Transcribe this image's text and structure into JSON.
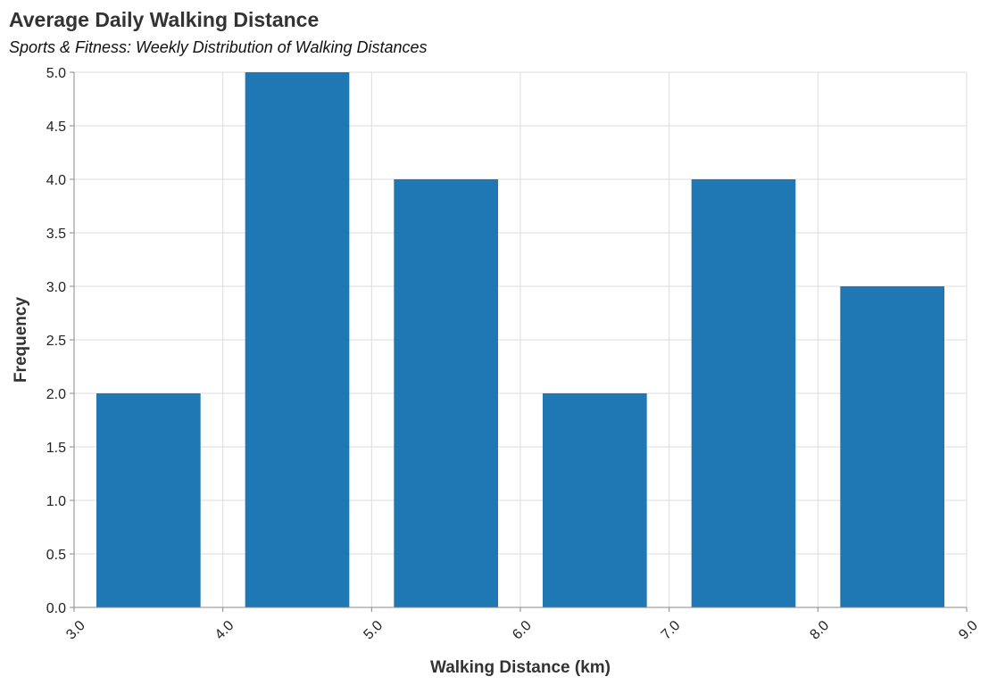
{
  "chart_data": {
    "type": "bar",
    "title": "Average Daily Walking Distance",
    "subtitle": "Sports & Fitness: Weekly Distribution of Walking Distances",
    "xlabel": "Walking Distance (km)",
    "ylabel": "Frequency",
    "xlim": [
      3.0,
      9.0
    ],
    "ylim": [
      0,
      5
    ],
    "x_ticks": [
      "3.0",
      "4.0",
      "5.0",
      "6.0",
      "7.0",
      "8.0",
      "9.0"
    ],
    "y_ticks": [
      "0.0",
      "0.5",
      "1.0",
      "1.5",
      "2.0",
      "2.5",
      "3.0",
      "3.5",
      "4.0",
      "4.5",
      "5.0"
    ],
    "bins": [
      {
        "start": 3.0,
        "end": 4.0,
        "value": 2
      },
      {
        "start": 4.0,
        "end": 5.0,
        "value": 5
      },
      {
        "start": 5.0,
        "end": 6.0,
        "value": 4
      },
      {
        "start": 6.0,
        "end": 7.0,
        "value": 2
      },
      {
        "start": 7.0,
        "end": 8.0,
        "value": 4
      },
      {
        "start": 8.0,
        "end": 9.0,
        "value": 3
      }
    ],
    "bar_color": "#1f77b4",
    "grid": true
  }
}
